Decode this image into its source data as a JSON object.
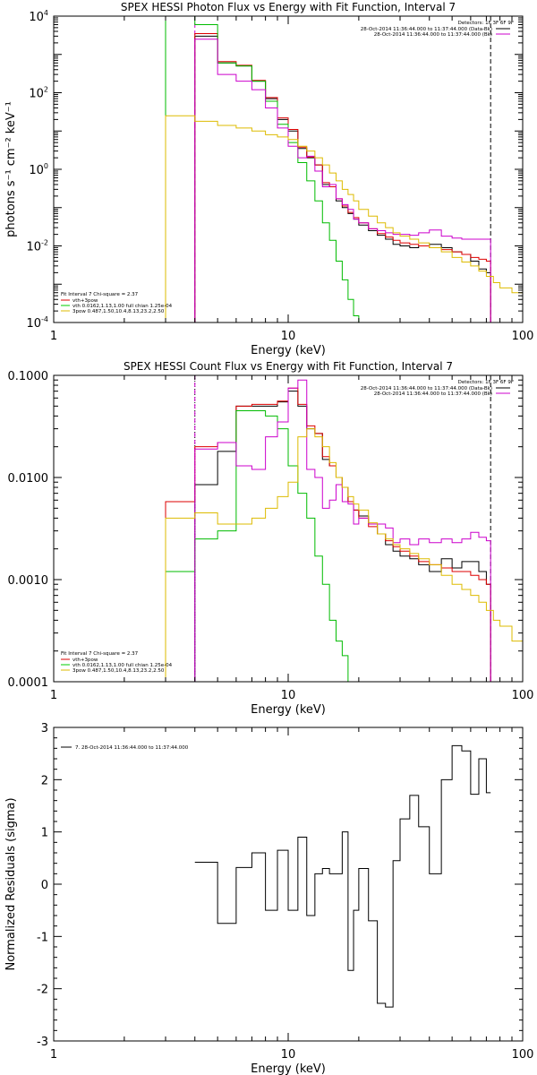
{
  "chart_data": [
    {
      "type": "line",
      "title": "SPEX HESSI Photon Flux vs Energy with Fit Function, Interval 7",
      "xlabel": "Energy (keV)",
      "ylabel": "photons s⁻¹ cm⁻² keV⁻¹",
      "xscale": "log",
      "yscale": "log",
      "xlim": [
        1,
        100
      ],
      "ylim": [
        0.0001,
        10000
      ],
      "xticks": [
        "1",
        "10",
        "100"
      ],
      "ytick_bases": [
        "10",
        "10",
        "10",
        "10",
        "10"
      ],
      "ytick_exps": [
        "-4",
        "-2",
        "0",
        "2",
        "4"
      ],
      "ytick_values": [
        0.0001,
        0.01,
        1,
        100,
        10000
      ],
      "detectors_label": "Detectors: 1F 3F 6F 9F",
      "header_legend": [
        {
          "text": "28-Oct-2014 11:36:44.000 to 11:37:44.000 (Data-Bk)",
          "color": "#000000"
        },
        {
          "text": "28-Oct-2014 11:36:44.000 to 11:37:44.000 (Bk)",
          "color": "#cc00cc"
        }
      ],
      "fit_header": "Fit Interval 7   Chi-square = 2.37",
      "fit_legend": [
        {
          "text": "vth+3pow",
          "color": "#dd0000"
        },
        {
          "text": "vth 0.0162,1.13,1.00  full chian 1.25e-04",
          "color": "#00cc00"
        },
        {
          "text": "3pow 0.487,1.50,10.4,8.13,23.2,2.50",
          "color": "#ddbb00"
        }
      ],
      "vlines": [
        {
          "x": 4.0,
          "color": "#cc00cc",
          "style": "dashed"
        },
        {
          "x": 73,
          "color": "#000000",
          "style": "dashed"
        }
      ],
      "series": [
        {
          "color": "#000000",
          "edges": [
            4,
            5,
            6,
            7,
            8,
            9,
            10,
            11,
            12,
            13,
            14,
            15,
            16,
            17,
            18,
            19,
            20,
            22,
            24,
            26,
            28,
            30,
            33,
            36,
            40,
            45,
            50,
            55,
            60,
            65,
            70,
            73
          ],
          "values": [
            3000,
            600,
            500,
            200,
            70,
            20,
            10,
            3.5,
            2,
            1.3,
            0.4,
            0.35,
            0.15,
            0.1,
            0.07,
            0.05,
            0.035,
            0.025,
            0.019,
            0.015,
            0.011,
            0.01,
            0.009,
            0.01,
            0.011,
            0.009,
            0.007,
            0.006,
            0.004,
            0.0025,
            0.002
          ]
        },
        {
          "color": "#dd0000",
          "edges": [
            4,
            5,
            6,
            7,
            8,
            9,
            10,
            11,
            12,
            13,
            14,
            15,
            16,
            17,
            18,
            19,
            20,
            22,
            24,
            26,
            28,
            30,
            33,
            36,
            40,
            45,
            50,
            55,
            60,
            65,
            70,
            73
          ],
          "values": [
            3500,
            650,
            520,
            210,
            75,
            22,
            11,
            3.8,
            2.1,
            1.3,
            0.45,
            0.35,
            0.17,
            0.11,
            0.075,
            0.055,
            0.04,
            0.028,
            0.021,
            0.017,
            0.014,
            0.012,
            0.011,
            0.01,
            0.009,
            0.008,
            0.007,
            0.006,
            0.005,
            0.0045,
            0.004
          ]
        },
        {
          "color": "#00bb00",
          "edges": [
            3,
            4,
            5,
            6,
            7,
            8,
            9,
            10,
            11,
            12,
            13,
            14,
            15,
            16,
            17,
            18,
            19,
            20,
            21
          ],
          "values": [
            10000,
            6000,
            600,
            500,
            200,
            60,
            15,
            5,
            1.5,
            0.5,
            0.15,
            0.04,
            0.014,
            0.004,
            0.0013,
            0.0004,
            0.00015,
            0.0001
          ]
        },
        {
          "color": "#cc00cc",
          "edges": [
            4,
            5,
            6,
            7,
            8,
            9,
            10,
            11,
            12,
            13,
            14,
            15,
            16,
            17,
            18,
            19,
            20,
            22,
            24,
            26,
            28,
            30,
            33,
            36,
            40,
            45,
            50,
            55,
            60,
            65,
            70,
            73
          ],
          "values": [
            2500,
            300,
            200,
            120,
            40,
            12,
            4,
            2,
            2.2,
            0.9,
            0.35,
            0.4,
            0.17,
            0.12,
            0.09,
            0.05,
            0.04,
            0.028,
            0.025,
            0.022,
            0.02,
            0.02,
            0.019,
            0.022,
            0.026,
            0.018,
            0.016,
            0.015,
            0.015,
            0.015,
            0.015
          ]
        },
        {
          "color": "#ddbb00",
          "edges": [
            3,
            4,
            5,
            6,
            7,
            8,
            9,
            10,
            11,
            12,
            13,
            14,
            15,
            16,
            17,
            18,
            19,
            20,
            22,
            24,
            26,
            28,
            30,
            33,
            36,
            40,
            45,
            50,
            55,
            60,
            65,
            70,
            75,
            80,
            90,
            100
          ],
          "values": [
            25,
            18,
            14,
            12,
            10,
            8,
            7,
            6,
            4,
            3,
            2,
            1.3,
            0.8,
            0.5,
            0.3,
            0.22,
            0.15,
            0.09,
            0.06,
            0.04,
            0.03,
            0.022,
            0.018,
            0.015,
            0.012,
            0.009,
            0.007,
            0.005,
            0.0038,
            0.003,
            0.0022,
            0.0016,
            0.0011,
            0.0008,
            0.0006
          ]
        }
      ]
    },
    {
      "type": "line",
      "title": "SPEX HESSI Count Flux vs Energy with Fit Function, Interval 7",
      "xlabel": "Energy (keV)",
      "ylabel": "",
      "xscale": "log",
      "yscale": "log",
      "xlim": [
        1,
        100
      ],
      "ylim": [
        0.0001,
        0.1
      ],
      "xticks": [
        "1",
        "10",
        "100"
      ],
      "yticks": [
        "0.0001",
        "0.0010",
        "0.0100",
        "0.1000"
      ],
      "ytick_values": [
        0.0001,
        0.001,
        0.01,
        0.1
      ],
      "detectors_label": "Detectors: 1F 3F 6F 9F",
      "header_legend": [
        {
          "text": "28-Oct-2014 11:36:44.000 to 11:37:44.000 (Data-Bk)",
          "color": "#000000"
        },
        {
          "text": "28-Oct-2014 11:36:44.000 to 11:37:44.000 (Bk)",
          "color": "#cc00cc"
        }
      ],
      "fit_header": "Fit Interval 7   Chi-square = 2.37",
      "fit_legend": [
        {
          "text": "vth+3pow",
          "color": "#dd0000"
        },
        {
          "text": "vth 0.0162,1.13,1.00  full chian 1.25e-04",
          "color": "#00cc00"
        },
        {
          "text": "3pow 0.487,1.50,10.4,8.13,23.2,2.50",
          "color": "#ddbb00"
        }
      ],
      "vlines": [
        {
          "x": 4.0,
          "color": "#000000",
          "style": "dotted"
        },
        {
          "x": 4.0,
          "color": "#cc00cc",
          "style": "dashed"
        },
        {
          "x": 73,
          "color": "#000000",
          "style": "dashed"
        }
      ],
      "series": [
        {
          "color": "#000000",
          "edges": [
            4,
            5,
            6,
            7,
            8,
            9,
            10,
            11,
            12,
            13,
            14,
            15,
            16,
            17,
            18,
            19,
            20,
            22,
            24,
            26,
            28,
            30,
            33,
            36,
            40,
            45,
            50,
            55,
            60,
            65,
            70,
            73
          ],
          "values": [
            0.0085,
            0.018,
            0.05,
            0.05,
            0.05,
            0.055,
            0.07,
            0.05,
            0.03,
            0.027,
            0.015,
            0.013,
            0.01,
            0.008,
            0.0058,
            0.0048,
            0.0042,
            0.0035,
            0.0028,
            0.0022,
            0.0019,
            0.0017,
            0.0016,
            0.0014,
            0.0012,
            0.0016,
            0.0013,
            0.0015,
            0.0015,
            0.0012,
            0.0009
          ]
        },
        {
          "color": "#dd0000",
          "edges": [
            3,
            4,
            5,
            6,
            7,
            8,
            9,
            10,
            11,
            12,
            13,
            14,
            15,
            16,
            17,
            18,
            19,
            20,
            22,
            24,
            26,
            28,
            30,
            33,
            36,
            40,
            45,
            50,
            55,
            60,
            65,
            70,
            73
          ],
          "values": [
            0.0058,
            0.02,
            0.022,
            0.05,
            0.052,
            0.052,
            0.056,
            0.075,
            0.052,
            0.032,
            0.027,
            0.016,
            0.013,
            0.01,
            0.008,
            0.0058,
            0.0048,
            0.004,
            0.0033,
            0.0028,
            0.0024,
            0.0021,
            0.0019,
            0.0017,
            0.0015,
            0.0014,
            0.0013,
            0.0012,
            0.0012,
            0.0011,
            0.001,
            0.0009
          ]
        },
        {
          "color": "#00bb00",
          "edges": [
            3,
            4,
            5,
            6,
            7,
            8,
            9,
            10,
            11,
            12,
            13,
            14,
            15,
            16,
            17,
            18,
            19
          ],
          "values": [
            0.0012,
            0.0025,
            0.003,
            0.045,
            0.045,
            0.04,
            0.03,
            0.013,
            0.007,
            0.004,
            0.0017,
            0.0009,
            0.0004,
            0.00025,
            0.00018,
            0.0001
          ]
        },
        {
          "color": "#cc00cc",
          "edges": [
            4,
            5,
            6,
            7,
            8,
            9,
            10,
            11,
            12,
            13,
            14,
            15,
            16,
            17,
            18,
            19,
            20,
            22,
            24,
            26,
            28,
            30,
            33,
            36,
            40,
            45,
            50,
            55,
            60,
            65,
            70,
            73
          ],
          "values": [
            0.019,
            0.022,
            0.013,
            0.012,
            0.025,
            0.035,
            0.075,
            0.09,
            0.012,
            0.01,
            0.005,
            0.006,
            0.0085,
            0.0058,
            0.0055,
            0.0035,
            0.004,
            0.0035,
            0.0035,
            0.0032,
            0.0023,
            0.0025,
            0.0022,
            0.0025,
            0.0023,
            0.0025,
            0.0023,
            0.0025,
            0.0029,
            0.0026,
            0.0024
          ]
        },
        {
          "color": "#ddbb00",
          "edges": [
            3,
            4,
            5,
            6,
            7,
            8,
            9,
            10,
            11,
            12,
            13,
            14,
            15,
            16,
            17,
            18,
            19,
            20,
            22,
            24,
            26,
            28,
            30,
            33,
            36,
            40,
            45,
            50,
            55,
            60,
            65,
            70,
            75,
            80,
            90,
            100
          ],
          "values": [
            0.004,
            0.0045,
            0.0035,
            0.0035,
            0.004,
            0.005,
            0.0065,
            0.009,
            0.025,
            0.03,
            0.025,
            0.02,
            0.014,
            0.01,
            0.008,
            0.0065,
            0.0055,
            0.0048,
            0.0036,
            0.0028,
            0.0025,
            0.0022,
            0.002,
            0.0018,
            0.0016,
            0.0014,
            0.0011,
            0.0009,
            0.0008,
            0.0007,
            0.0006,
            0.0005,
            0.0004,
            0.00035,
            0.00025
          ]
        }
      ]
    },
    {
      "type": "line",
      "title": "",
      "xlabel": "Energy (keV)",
      "ylabel": "Normalized Residuals (sigma)",
      "xscale": "log",
      "yscale": "linear",
      "xlim": [
        1,
        100
      ],
      "ylim": [
        -3,
        3
      ],
      "xticks": [
        "1",
        "10",
        "100"
      ],
      "yticks": [
        "-3",
        "-2",
        "-1",
        "0",
        "1",
        "2",
        "3"
      ],
      "ytick_values": [
        -3,
        -2,
        -1,
        0,
        1,
        2,
        3
      ],
      "legend": [
        {
          "text": "7. 28-Oct-2014 11:36:44.000 to 11:37:44.000",
          "color": "#000000"
        }
      ],
      "series": [
        {
          "color": "#000000",
          "edges": [
            4,
            5,
            6,
            7,
            8,
            9,
            10,
            11,
            12,
            13,
            14,
            15,
            16,
            17,
            18,
            19,
            20,
            22,
            24,
            26,
            28,
            30,
            33,
            36,
            40,
            45,
            50,
            55,
            60,
            65,
            70,
            73
          ],
          "values": [
            0.42,
            -0.75,
            0.32,
            0.6,
            -0.5,
            0.65,
            -0.5,
            0.9,
            -0.6,
            0.2,
            0.3,
            0.2,
            0.2,
            1.0,
            -1.65,
            -0.5,
            0.3,
            -0.7,
            -2.28,
            -2.35,
            0.45,
            1.25,
            1.7,
            1.1,
            0.2,
            2.0,
            2.65,
            2.55,
            1.72,
            2.4,
            1.75
          ]
        }
      ]
    }
  ]
}
